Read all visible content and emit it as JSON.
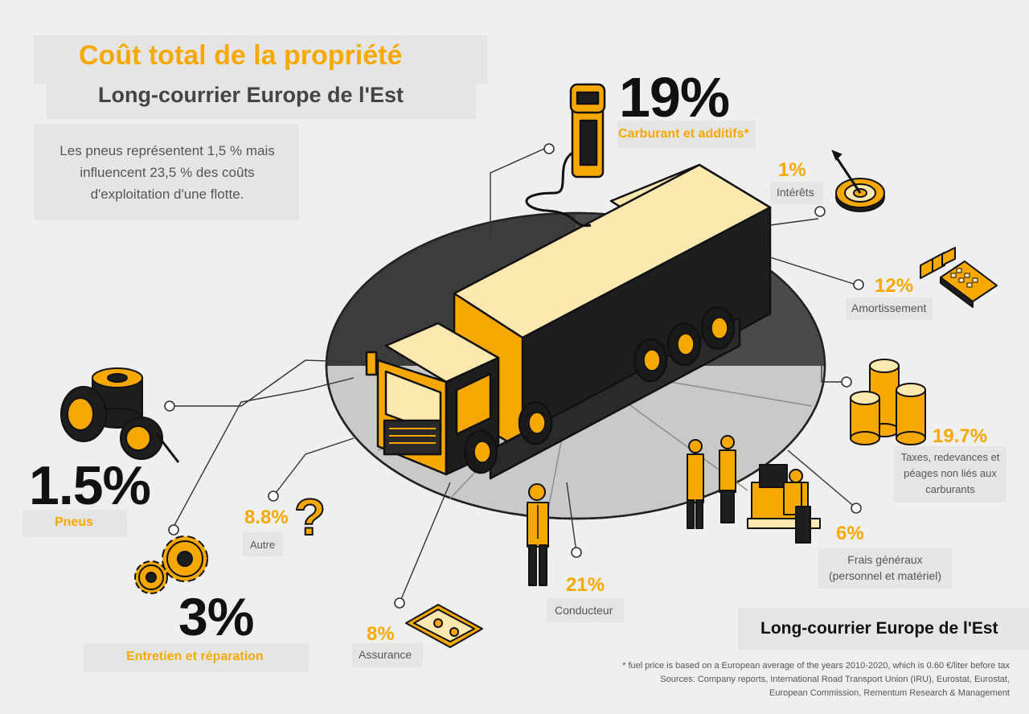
{
  "header": {
    "title": "Coût total de la propriété",
    "subtitle": "Long-courrier Europe de l'Est",
    "intro": "Les pneus représentent 1,5 % mais influencent 23,5 % des coûts d'exploitation d'une flotte."
  },
  "costs": {
    "fuel": {
      "value": "19%",
      "label": "Carburant et additifs*",
      "share": 19
    },
    "interest": {
      "value": "1%",
      "label": "Intérêts",
      "share": 1
    },
    "depreciation": {
      "value": "12%",
      "label": "Amortissement",
      "share": 12
    },
    "taxes": {
      "value": "19.7%",
      "label_line1": "Taxes, redevances et",
      "label_line2": "péages non liés aux",
      "label_line3": "carburants",
      "share": 19.7
    },
    "overhead": {
      "value": "6%",
      "label_line1": "Frais généraux",
      "label_line2": "(personnel et matériel)",
      "share": 6
    },
    "driver": {
      "value": "21%",
      "label": "Conducteur",
      "share": 21
    },
    "insurance": {
      "value": "8%",
      "label": "Assurance",
      "share": 8
    },
    "maintenance": {
      "value": "3%",
      "label": "Entretien et réparation",
      "share": 3
    },
    "other": {
      "value": "8.8%",
      "label": "Autre",
      "share": 8.8
    },
    "tyres": {
      "value": "1.5%",
      "label": "Pneus",
      "share": 1.5
    }
  },
  "brand_label": "Long-courrier Europe de l'Est",
  "footnote": {
    "line1": "* fuel price is based on a European average of the years 2010-2020, which is 0.60 €/liter before tax",
    "line2": "Sources: Company reports, International Road Transport Union (IRU), Eurostat, Eurostat,",
    "line3": "European Commission, Rementum Research & Management"
  },
  "colors": {
    "accent": "#f6a800",
    "dark": "#111111",
    "disc_dark": "#4a4a4a",
    "disc_light": "#c8c8c8",
    "panel": "#e5e5e5"
  }
}
